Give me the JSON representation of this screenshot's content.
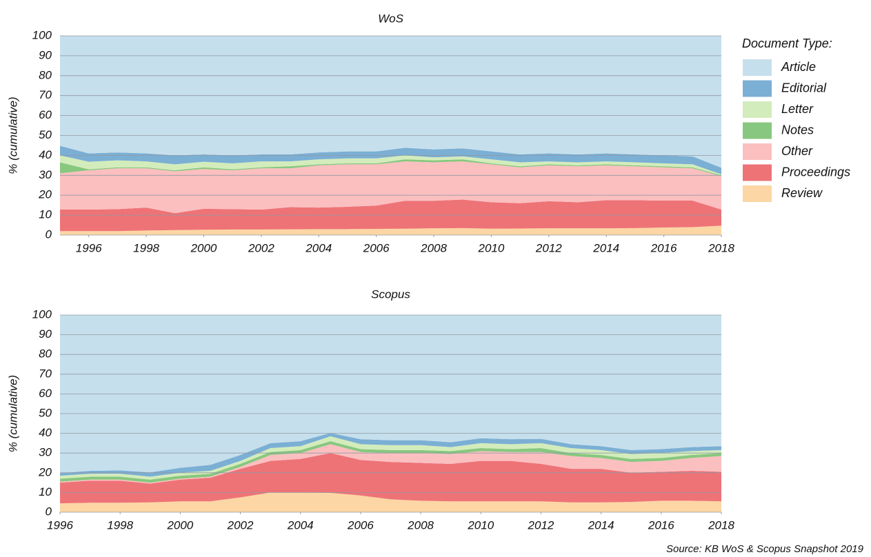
{
  "chart_data": [
    {
      "type": "area",
      "stacked": true,
      "title": "WoS",
      "y_label": "% (cumulative)",
      "legend_title": "Document Type:",
      "x": [
        1995,
        1996,
        1997,
        1998,
        1999,
        2000,
        2001,
        2002,
        2003,
        2004,
        2005,
        2006,
        2007,
        2008,
        2009,
        2010,
        2011,
        2012,
        2013,
        2014,
        2015,
        2016,
        2017,
        2018
      ],
      "xlim": [
        1995,
        2018
      ],
      "xticks": [
        1996,
        1998,
        2000,
        2002,
        2004,
        2006,
        2008,
        2010,
        2012,
        2014,
        2016,
        2018
      ],
      "ylim": [
        0,
        100
      ],
      "yticks": [
        0,
        10,
        20,
        30,
        40,
        50,
        60,
        70,
        80,
        90,
        100
      ],
      "grid": true,
      "series": [
        {
          "name": "Review",
          "color": "#fcd6a4",
          "values": [
            2,
            2,
            2,
            2.3,
            2.5,
            2.7,
            2.8,
            2.8,
            2.9,
            3,
            3,
            3.1,
            3.2,
            3.4,
            3.5,
            3.2,
            3.3,
            3.4,
            3.4,
            3.4,
            3.5,
            3.8,
            4,
            4.7
          ]
        },
        {
          "name": "Proceedings",
          "color": "#ee7377",
          "values": [
            10.8,
            10.8,
            11,
            11.5,
            8.5,
            10.5,
            10.2,
            10,
            11.1,
            10.8,
            11.2,
            11.7,
            14,
            13.8,
            14.3,
            13.3,
            12.7,
            13.6,
            13.1,
            14.1,
            14,
            13.5,
            13.3,
            8.1
          ]
        },
        {
          "name": "Other",
          "color": "#fbbfc0",
          "values": [
            18.2,
            19.7,
            20.5,
            19.7,
            21,
            20,
            19.5,
            20.7,
            19.5,
            21.2,
            21.3,
            20.7,
            19.8,
            19.3,
            19.2,
            19,
            18,
            18,
            18,
            17.5,
            17,
            16.7,
            16.2,
            16.7
          ]
        },
        {
          "name": "Notes",
          "color": "#88c77f",
          "values": [
            5.5,
            0.5,
            0.5,
            0.5,
            0.5,
            0.8,
            0.5,
            0.5,
            1,
            0.5,
            0.5,
            0.5,
            1,
            1,
            1,
            0.5,
            0.5,
            0.5,
            0.5,
            0.5,
            0.5,
            0.5,
            0.5,
            0.5
          ]
        },
        {
          "name": "Letter",
          "color": "#d3ecbb",
          "values": [
            3.5,
            3.8,
            3.5,
            3,
            3,
            2.8,
            3,
            3,
            2.5,
            2.5,
            2.5,
            2.5,
            2,
            1.5,
            1.5,
            2,
            2,
            1.5,
            1.5,
            1.5,
            1.5,
            1.5,
            1.5,
            0.5
          ]
        },
        {
          "name": "Editorial",
          "color": "#7bafd4",
          "values": [
            4.8,
            4.2,
            4,
            4,
            4.5,
            3.7,
            4,
            3.5,
            3.5,
            3.5,
            3.5,
            3.5,
            3.8,
            4,
            4,
            4,
            4,
            4,
            4,
            4,
            4,
            4,
            4,
            3.3
          ]
        },
        {
          "name": "Article",
          "color": "#c6dfec",
          "values": [
            55.2,
            59,
            58.5,
            59,
            60,
            59.5,
            60,
            59.5,
            59.5,
            58.5,
            58,
            58,
            56.2,
            57,
            56.5,
            58,
            59.5,
            59,
            59.5,
            59,
            59.5,
            60,
            60.5,
            66.2
          ]
        }
      ]
    },
    {
      "type": "area",
      "stacked": true,
      "title": "Scopus",
      "y_label": "% (cumulative)",
      "x": [
        1996,
        1997,
        1998,
        1999,
        2000,
        2001,
        2002,
        2003,
        2004,
        2005,
        2006,
        2007,
        2008,
        2009,
        2010,
        2011,
        2012,
        2013,
        2014,
        2015,
        2016,
        2017,
        2018
      ],
      "xlim": [
        1996,
        2018
      ],
      "xticks": [
        1996,
        1998,
        2000,
        2002,
        2004,
        2006,
        2008,
        2010,
        2012,
        2014,
        2016,
        2018
      ],
      "ylim": [
        0,
        100
      ],
      "yticks": [
        0,
        10,
        20,
        30,
        40,
        50,
        60,
        70,
        80,
        90,
        100
      ],
      "grid": true,
      "series": [
        {
          "name": "Review",
          "color": "#fcd6a4",
          "values": [
            4.5,
            4.8,
            4.8,
            5,
            5.5,
            5.5,
            7.5,
            10,
            10,
            9.8,
            8.5,
            6.5,
            5.8,
            5.5,
            5.5,
            5.5,
            5.5,
            5,
            5,
            5.2,
            5.8,
            5.8,
            5.5
          ]
        },
        {
          "name": "Proceedings",
          "color": "#ee7377",
          "values": [
            10.5,
            11.2,
            11.2,
            9.5,
            11,
            12,
            14.5,
            16,
            17,
            20.2,
            18,
            19,
            19.2,
            19,
            20.5,
            20.5,
            19,
            17,
            17,
            14.8,
            14.7,
            15.2,
            15
          ]
        },
        {
          "name": "Other",
          "color": "#fbbfc0",
          "values": [
            0.5,
            0.5,
            0.5,
            0.5,
            0.5,
            0.5,
            1,
            3,
            3,
            4.5,
            4,
            4.5,
            5,
            5,
            5,
            4.5,
            6,
            6.5,
            5.5,
            5.5,
            5.5,
            6.5,
            8
          ]
        },
        {
          "name": "Notes",
          "color": "#88c77f",
          "values": [
            1.5,
            1.5,
            1.5,
            1.5,
            1.5,
            1.5,
            1.5,
            1.5,
            1.5,
            1.5,
            1.5,
            1.5,
            1.5,
            1.5,
            1.5,
            1.5,
            2,
            1.5,
            1.5,
            1.5,
            1.5,
            1.5,
            1.5
          ]
        },
        {
          "name": "Letter",
          "color": "#d3ecbb",
          "values": [
            1.5,
            1.5,
            1.5,
            1.5,
            1.5,
            1.5,
            1.5,
            2,
            2,
            2.5,
            2.5,
            2.5,
            2.5,
            2,
            2.5,
            2.5,
            2.5,
            2.5,
            2.5,
            2.5,
            2.5,
            2,
            1.5
          ]
        },
        {
          "name": "Editorial",
          "color": "#7bafd4",
          "values": [
            1.3,
            1.5,
            1.7,
            2.2,
            2.5,
            3,
            3,
            2.5,
            2.5,
            1.7,
            2.5,
            2.5,
            2.5,
            2.5,
            2.5,
            2.5,
            2.2,
            2,
            2,
            2,
            2,
            2,
            2
          ]
        },
        {
          "name": "Article",
          "color": "#c6dfec",
          "values": [
            80.2,
            79,
            78.8,
            79.8,
            77.5,
            76,
            71,
            65,
            64,
            59.8,
            63,
            63.5,
            63.5,
            64.5,
            62.5,
            63,
            62.8,
            65.5,
            66.5,
            68.5,
            68,
            67,
            66.5
          ]
        }
      ]
    }
  ],
  "source": "Source: KB WoS & Scopus Snapshot 2019"
}
